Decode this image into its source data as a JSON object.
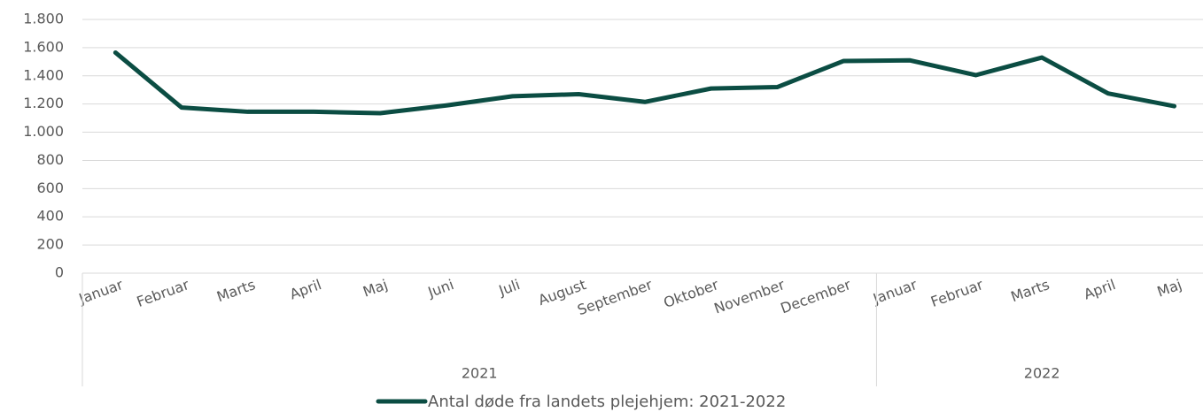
{
  "chart_data": {
    "type": "line",
    "categories": [
      "Januar",
      "Februar",
      "Marts",
      "April",
      "Maj",
      "Juni",
      "Juli",
      "August",
      "September",
      "Oktober",
      "November",
      "December",
      "Januar",
      "Februar",
      "Marts",
      "April",
      "Maj"
    ],
    "groups": [
      {
        "label": "2021",
        "size": 12
      },
      {
        "label": "2022",
        "size": 5
      }
    ],
    "series": [
      {
        "name": "Antal døde fra landets plejehjem: 2021-2022",
        "color": "#0b4d43",
        "values": [
          1565,
          1175,
          1145,
          1145,
          1135,
          1190,
          1255,
          1270,
          1215,
          1310,
          1320,
          1505,
          1510,
          1405,
          1530,
          1275,
          1185
        ]
      }
    ],
    "ylim": [
      0,
      1800
    ],
    "yticks": [
      0,
      {
        "value": 200,
        "label": "200"
      },
      {
        "value": 400,
        "label": "400"
      },
      {
        "value": 600,
        "label": "600"
      },
      {
        "value": 800,
        "label": "800"
      },
      {
        "value": 1000,
        "label": "1.000"
      },
      {
        "value": 1200,
        "label": "1.200"
      },
      {
        "value": 1400,
        "label": "1.400"
      },
      {
        "value": 1600,
        "label": "1.600"
      },
      {
        "value": 1800,
        "label": "1.800"
      }
    ],
    "grid": true,
    "legend": "bottom"
  }
}
